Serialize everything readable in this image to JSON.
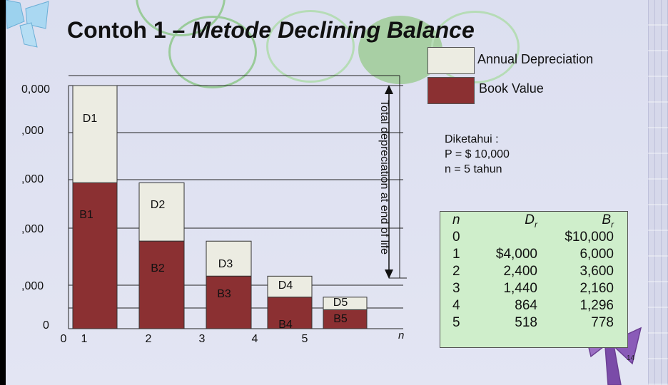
{
  "title": {
    "normal": "Contoh 1 – ",
    "italic": "Metode Declining Balance"
  },
  "legend": {
    "annual_depreciation": "Annual Depreciation",
    "book_value": "Book Value"
  },
  "given": {
    "heading": "Diketahui :",
    "p": "P = $ 10,000",
    "n": "n = 5 tahun"
  },
  "table": {
    "headers": {
      "n": "n",
      "dr": "D",
      "dr_sub": "r",
      "br": "B",
      "br_sub": "r"
    },
    "n": [
      "0",
      "1",
      "2",
      "3",
      "4",
      "5"
    ],
    "dr": [
      "",
      "$4,000",
      "2,400",
      "1,440",
      "864",
      "518"
    ],
    "br": [
      "$10,000",
      "6,000",
      "3,600",
      "2,160",
      "1,296",
      "778"
    ]
  },
  "page_number": "14",
  "colors": {
    "annual_depreciation": "#ecece2",
    "book_value": "#8b3032",
    "table_background": "#cfeecb",
    "slide_background": "#dcdff0"
  },
  "chart_data": {
    "type": "bar",
    "stacked": true,
    "x_ticks": [
      "0",
      "1",
      "2",
      "3",
      "4",
      "5"
    ],
    "x_end_label": "n",
    "y_tick_labels": [
      "0",
      ",000",
      ",000",
      ",000",
      ",000",
      "0,000"
    ],
    "y_tick_values": [
      0,
      2000,
      4000,
      6000,
      8000,
      10000
    ],
    "ylim": [
      0,
      10000
    ],
    "grid": "horizontal",
    "categories": [
      "1",
      "2",
      "3",
      "4",
      "5"
    ],
    "series": [
      {
        "name": "Book Value",
        "values": [
          6000,
          3600,
          2160,
          1296,
          778
        ],
        "labels": [
          "B1",
          "B2",
          "B3",
          "B4",
          "B5"
        ]
      },
      {
        "name": "Annual Depreciation",
        "values": [
          4000,
          2400,
          1440,
          864,
          518
        ],
        "labels": [
          "D1",
          "D2",
          "D3",
          "D4",
          "D5"
        ]
      }
    ],
    "annotation": "Total depreciation at end of life"
  }
}
